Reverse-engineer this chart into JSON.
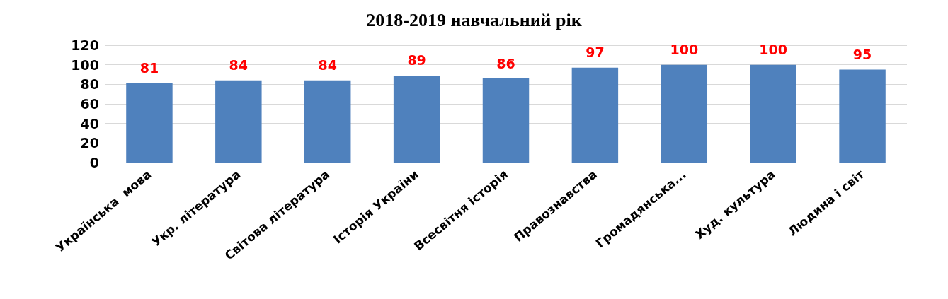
{
  "chart_data": {
    "type": "bar",
    "title": "2018-2019 навчальний рік",
    "categories": [
      "Українська  мова",
      "Укр. література",
      "Світова література",
      "Історія України",
      "Всесвітня історія",
      "Правознавства",
      "Громадянська...",
      "Худ. культура",
      "Людина і світ"
    ],
    "values": [
      81,
      84,
      84,
      89,
      86,
      97,
      100,
      100,
      95
    ],
    "color": "#4f81bd",
    "ylim": [
      0,
      120
    ],
    "yticks": [
      0,
      20,
      40,
      60,
      80,
      100,
      120
    ],
    "grid": "y",
    "data_labels": true
  }
}
